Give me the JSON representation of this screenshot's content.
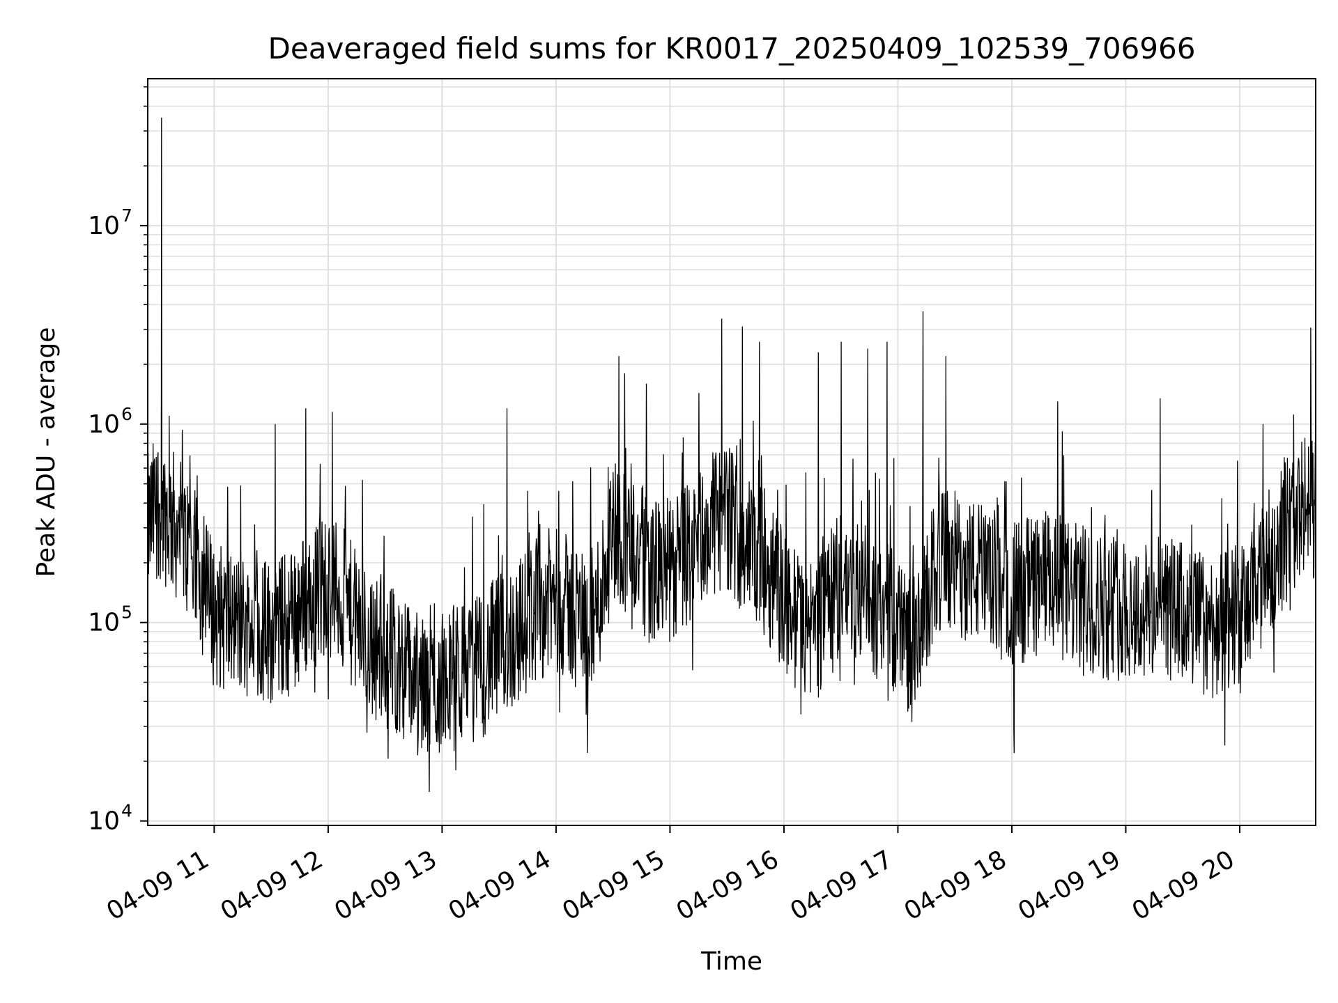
{
  "chart_data": {
    "type": "line",
    "title": "Deaveraged field sums for KR0017_20250409_102539_706966",
    "xlabel": "Time",
    "ylabel": "Peak ADU - average",
    "y_scale": "log",
    "ylim": [
      9500,
      55000000
    ],
    "xlim": [
      "2025-04-09 10:25",
      "2025-04-09 20:40"
    ],
    "grid": true,
    "legend": "none",
    "line_color": "#000000",
    "grid_color": "#e0e0e0",
    "x_ticks": [
      {
        "value": "2025-04-09 11:00",
        "label": "04-09 11"
      },
      {
        "value": "2025-04-09 12:00",
        "label": "04-09 12"
      },
      {
        "value": "2025-04-09 13:00",
        "label": "04-09 13"
      },
      {
        "value": "2025-04-09 14:00",
        "label": "04-09 14"
      },
      {
        "value": "2025-04-09 15:00",
        "label": "04-09 15"
      },
      {
        "value": "2025-04-09 16:00",
        "label": "04-09 16"
      },
      {
        "value": "2025-04-09 17:00",
        "label": "04-09 17"
      },
      {
        "value": "2025-04-09 18:00",
        "label": "04-09 18"
      },
      {
        "value": "2025-04-09 19:00",
        "label": "04-09 19"
      },
      {
        "value": "2025-04-09 20:00",
        "label": "04-09 20"
      }
    ],
    "y_ticks": [
      {
        "value": 10000,
        "base": "10",
        "exp": "4"
      },
      {
        "value": 100000,
        "base": "10",
        "exp": "5"
      },
      {
        "value": 1000000,
        "base": "10",
        "exp": "6"
      },
      {
        "value": 10000000,
        "base": "10",
        "exp": "7"
      }
    ],
    "series": [
      {
        "x": [
          "2025-04-09 10:25",
          "2025-04-09 10:30",
          "2025-04-09 10:35",
          "2025-04-09 10:40",
          "2025-04-09 10:45",
          "2025-04-09 10:50",
          "2025-04-09 11:00",
          "2025-04-09 11:10",
          "2025-04-09 11:20",
          "2025-04-09 11:30",
          "2025-04-09 11:40",
          "2025-04-09 11:50",
          "2025-04-09 12:00",
          "2025-04-09 12:10",
          "2025-04-09 12:20",
          "2025-04-09 12:30",
          "2025-04-09 12:40",
          "2025-04-09 12:50",
          "2025-04-09 13:00",
          "2025-04-09 13:10",
          "2025-04-09 13:20",
          "2025-04-09 13:30",
          "2025-04-09 13:40",
          "2025-04-09 13:50",
          "2025-04-09 14:00",
          "2025-04-09 14:10",
          "2025-04-09 14:20",
          "2025-04-09 14:30",
          "2025-04-09 14:40",
          "2025-04-09 14:50",
          "2025-04-09 15:00",
          "2025-04-09 15:10",
          "2025-04-09 15:20",
          "2025-04-09 15:30",
          "2025-04-09 15:40",
          "2025-04-09 15:50",
          "2025-04-09 16:00",
          "2025-04-09 16:10",
          "2025-04-09 16:20",
          "2025-04-09 16:30",
          "2025-04-09 16:40",
          "2025-04-09 16:50",
          "2025-04-09 17:00",
          "2025-04-09 17:10",
          "2025-04-09 17:20",
          "2025-04-09 17:30",
          "2025-04-09 17:40",
          "2025-04-09 17:50",
          "2025-04-09 18:00",
          "2025-04-09 18:10",
          "2025-04-09 18:20",
          "2025-04-09 18:30",
          "2025-04-09 18:40",
          "2025-04-09 18:50",
          "2025-04-09 19:00",
          "2025-04-09 19:10",
          "2025-04-09 19:20",
          "2025-04-09 19:30",
          "2025-04-09 19:40",
          "2025-04-09 19:50",
          "2025-04-09 20:00",
          "2025-04-09 20:10",
          "2025-04-09 20:20",
          "2025-04-09 20:30",
          "2025-04-09 20:40"
        ],
        "values": [
          300000,
          400000,
          350000,
          300000,
          250000,
          200000,
          110000,
          100000,
          95000,
          90000,
          100000,
          130000,
          160000,
          120000,
          80000,
          70000,
          60000,
          45000,
          50000,
          55000,
          60000,
          75000,
          90000,
          120000,
          130000,
          110000,
          100000,
          300000,
          250000,
          180000,
          180000,
          220000,
          300000,
          350000,
          250000,
          200000,
          130000,
          90000,
          100000,
          160000,
          140000,
          120000,
          100000,
          70000,
          200000,
          200000,
          180000,
          160000,
          140000,
          150000,
          160000,
          140000,
          130000,
          120000,
          120000,
          110000,
          120000,
          110000,
          100000,
          95000,
          100000,
          150000,
          250000,
          350000,
          400000
        ],
        "spikes": [
          {
            "x": "2025-04-09 10:32",
            "value": 35000000
          },
          {
            "x": "2025-04-09 10:32",
            "value": 5500000
          },
          {
            "x": "2025-04-09 10:36",
            "value": 1100000
          },
          {
            "x": "2025-04-09 11:32",
            "value": 1000000
          },
          {
            "x": "2025-04-09 11:48",
            "value": 1200000
          },
          {
            "x": "2025-04-09 12:02",
            "value": 1150000
          },
          {
            "x": "2025-04-09 13:34",
            "value": 1200000
          },
          {
            "x": "2025-04-09 14:33",
            "value": 2200000
          },
          {
            "x": "2025-04-09 14:36",
            "value": 1800000
          },
          {
            "x": "2025-04-09 15:27",
            "value": 3400000
          },
          {
            "x": "2025-04-09 15:38",
            "value": 3100000
          },
          {
            "x": "2025-04-09 15:47",
            "value": 2600000
          },
          {
            "x": "2025-04-09 16:18",
            "value": 2300000
          },
          {
            "x": "2025-04-09 16:30",
            "value": 2600000
          },
          {
            "x": "2025-04-09 16:44",
            "value": 2400000
          },
          {
            "x": "2025-04-09 16:54",
            "value": 2600000
          },
          {
            "x": "2025-04-09 17:13",
            "value": 3700000
          },
          {
            "x": "2025-04-09 17:25",
            "value": 2200000
          },
          {
            "x": "2025-04-09 18:24",
            "value": 1300000
          },
          {
            "x": "2025-04-09 19:18",
            "value": 1350000
          },
          {
            "x": "2025-04-09 20:12",
            "value": 1000000
          },
          {
            "x": "2025-04-09 12:53",
            "value": 14000
          },
          {
            "x": "2025-04-09 13:07",
            "value": 18000
          },
          {
            "x": "2025-04-09 18:01",
            "value": 22000
          },
          {
            "x": "2025-04-09 19:52",
            "value": 24000
          }
        ]
      }
    ]
  }
}
